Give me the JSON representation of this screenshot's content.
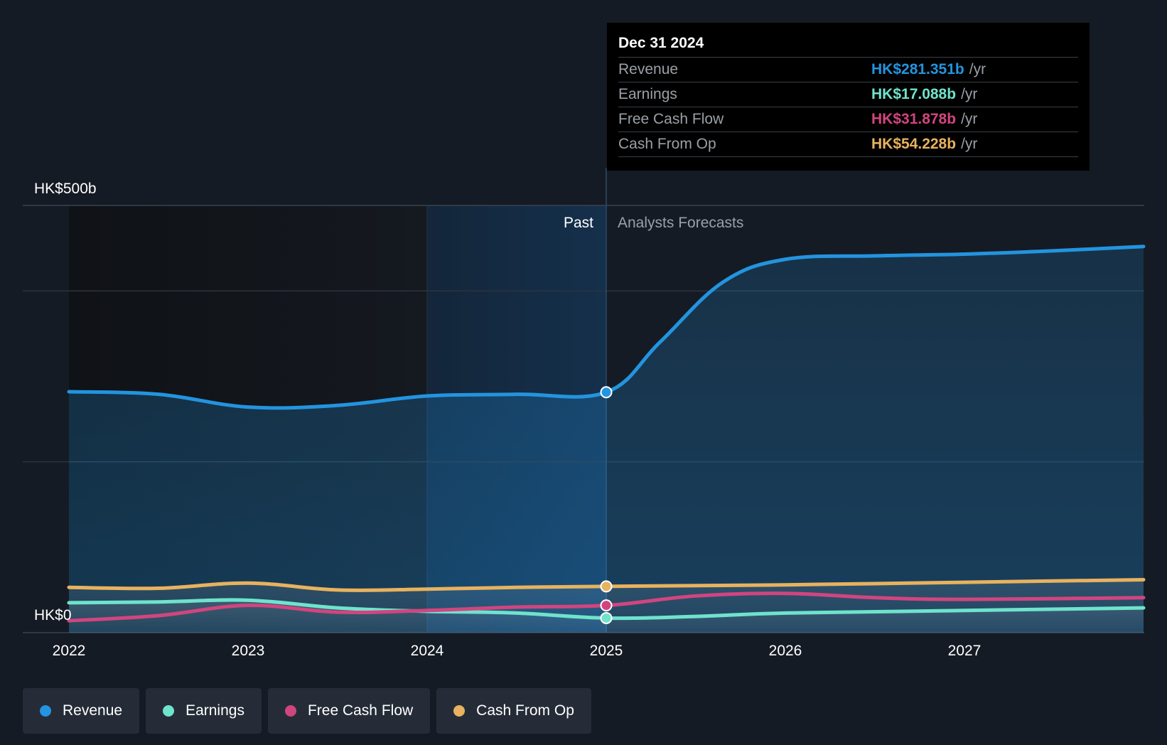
{
  "chart_data": {
    "type": "line",
    "x_ticks": [
      "2022",
      "2023",
      "2024",
      "2025",
      "2026",
      "2027"
    ],
    "y_labels": {
      "max": "HK$500b",
      "min": "HK$0"
    },
    "ylim": [
      0,
      500
    ],
    "xlim": [
      2021.95,
      2028.0
    ],
    "past_label": "Past",
    "forecast_label": "Analysts Forecasts",
    "divider_x": 2025.0,
    "past_highlight_start": 2024.0,
    "grid": true,
    "legend_position": "bottom",
    "series": [
      {
        "name": "Revenue",
        "color": "#2394df",
        "area": true,
        "points": [
          [
            2022.0,
            282
          ],
          [
            2022.5,
            279
          ],
          [
            2023.0,
            264
          ],
          [
            2023.5,
            266
          ],
          [
            2024.0,
            277
          ],
          [
            2024.5,
            279
          ],
          [
            2025.0,
            281.4
          ],
          [
            2025.3,
            340
          ],
          [
            2025.65,
            410
          ],
          [
            2026.0,
            437
          ],
          [
            2026.5,
            441
          ],
          [
            2027.0,
            443
          ],
          [
            2027.5,
            447
          ],
          [
            2028.0,
            452
          ]
        ]
      },
      {
        "name": "Cash From Op",
        "color": "#e8b25e",
        "area": true,
        "points": [
          [
            2022.0,
            53
          ],
          [
            2022.5,
            52
          ],
          [
            2023.0,
            58
          ],
          [
            2023.5,
            50
          ],
          [
            2024.0,
            51
          ],
          [
            2024.5,
            53
          ],
          [
            2025.0,
            54.2
          ],
          [
            2026.0,
            56
          ],
          [
            2027.0,
            59
          ],
          [
            2028.0,
            62
          ]
        ]
      },
      {
        "name": "Earnings",
        "color": "#6fe3cc",
        "area": true,
        "points": [
          [
            2022.0,
            35
          ],
          [
            2022.5,
            36
          ],
          [
            2023.0,
            38
          ],
          [
            2023.5,
            29
          ],
          [
            2024.0,
            25
          ],
          [
            2024.5,
            23
          ],
          [
            2025.0,
            17.1
          ],
          [
            2025.5,
            19
          ],
          [
            2026.0,
            23
          ],
          [
            2027.0,
            26
          ],
          [
            2028.0,
            29
          ]
        ]
      },
      {
        "name": "Free Cash Flow",
        "color": "#d1457f",
        "area": false,
        "points": [
          [
            2022.0,
            14
          ],
          [
            2022.5,
            20
          ],
          [
            2023.0,
            32
          ],
          [
            2023.5,
            24
          ],
          [
            2024.0,
            26
          ],
          [
            2024.5,
            30
          ],
          [
            2025.0,
            31.9
          ],
          [
            2025.5,
            43
          ],
          [
            2026.0,
            46
          ],
          [
            2026.5,
            41
          ],
          [
            2027.0,
            39
          ],
          [
            2028.0,
            41
          ]
        ]
      }
    ]
  },
  "tooltip": {
    "date": "Dec 31 2024",
    "rows": [
      {
        "label": "Revenue",
        "value": "HK$281.351b",
        "unit": "/yr",
        "color": "#2394df"
      },
      {
        "label": "Earnings",
        "value": "HK$17.088b",
        "unit": "/yr",
        "color": "#6fe3cc"
      },
      {
        "label": "Free Cash Flow",
        "value": "HK$31.878b",
        "unit": "/yr",
        "color": "#d1457f"
      },
      {
        "label": "Cash From Op",
        "value": "HK$54.228b",
        "unit": "/yr",
        "color": "#e8b25e"
      }
    ]
  },
  "legend": [
    {
      "label": "Revenue",
      "color": "#2394df"
    },
    {
      "label": "Earnings",
      "color": "#6fe3cc"
    },
    {
      "label": "Free Cash Flow",
      "color": "#d1457f"
    },
    {
      "label": "Cash From Op",
      "color": "#e8b25e"
    }
  ]
}
